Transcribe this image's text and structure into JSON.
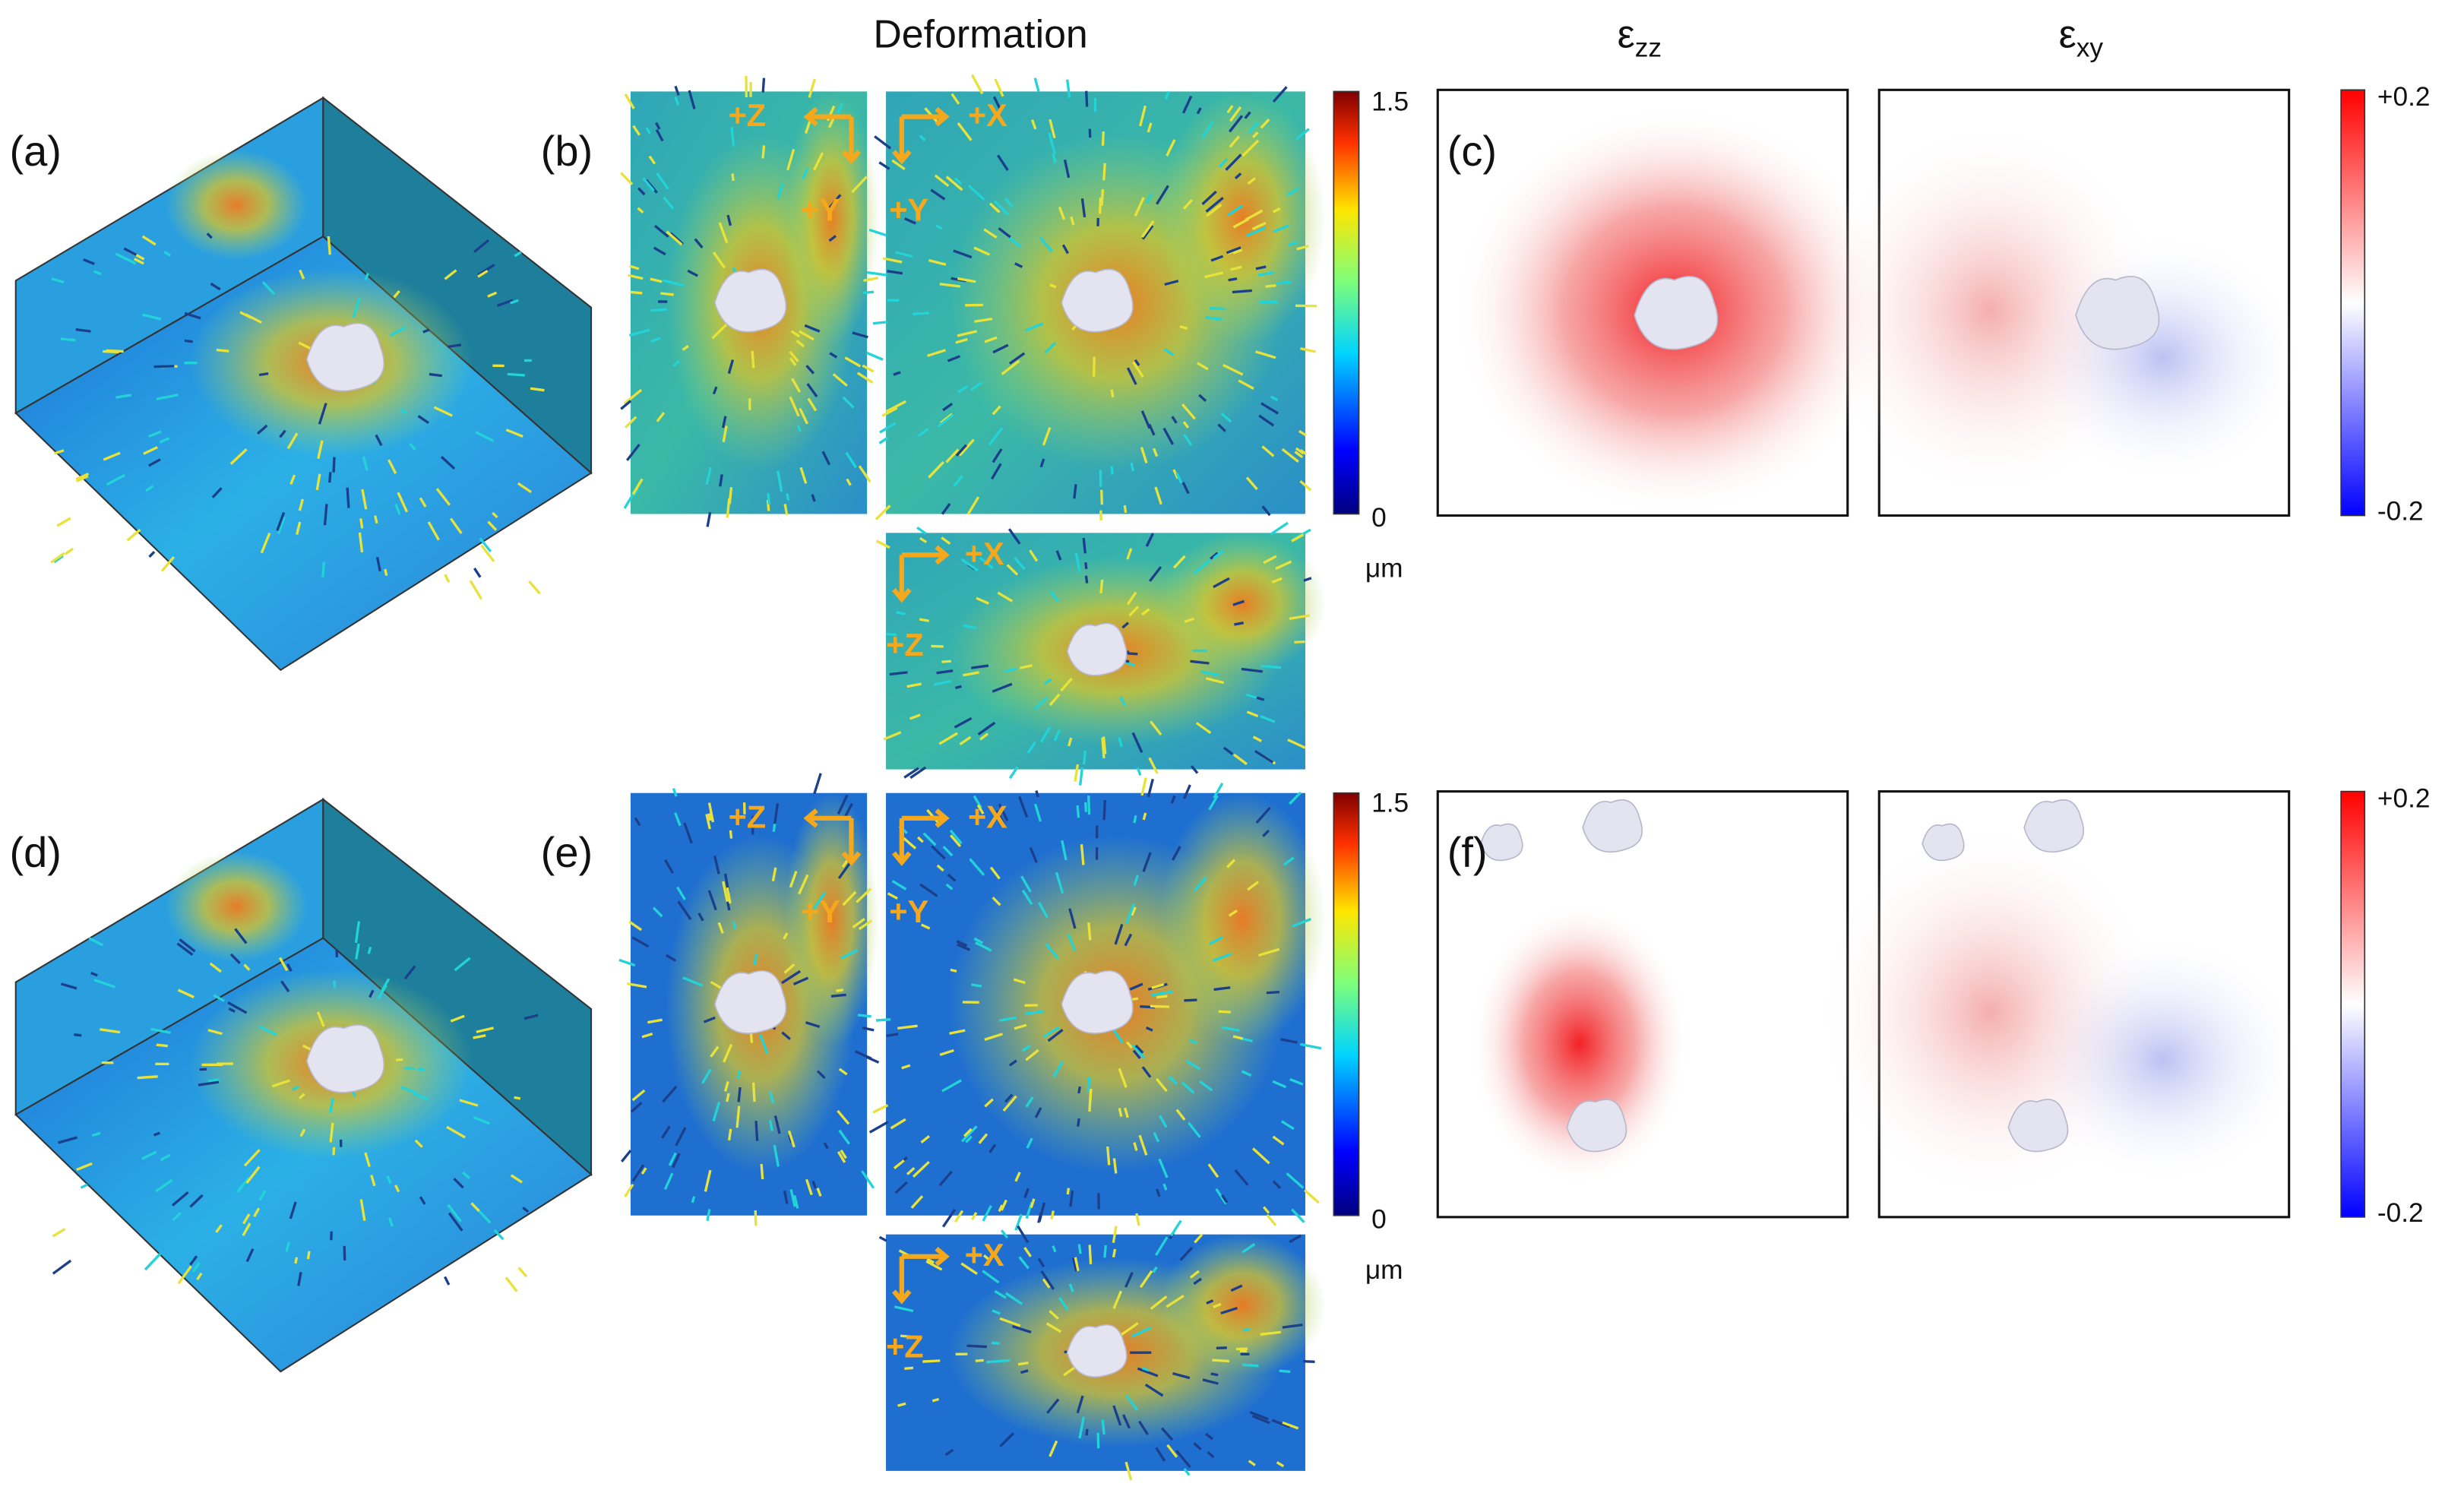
{
  "titles": {
    "deformation": "Deformation",
    "strain": [
      {
        "symbol": "ε",
        "subscript": "zz"
      },
      {
        "symbol": "ε",
        "subscript": "xy"
      }
    ]
  },
  "rows": [
    {
      "labels": [
        "(a)",
        "(b)",
        "(c)"
      ],
      "axes": {
        "side": [
          "+Z",
          "+Y"
        ],
        "top": [
          "+X",
          "+Y"
        ],
        "bottom": [
          "+X",
          "+Z"
        ]
      },
      "deformation_colorbar": {
        "max": "1.5",
        "min": "0",
        "unit": "μm"
      },
      "strain_colorbar": {
        "max": "+0.2",
        "min": "-0.2"
      }
    },
    {
      "labels": [
        "(d)",
        "(e)",
        "(f)"
      ],
      "axes": {
        "side": [
          "+Z",
          "+Y"
        ],
        "top": [
          "+X",
          "+Y"
        ],
        "bottom": [
          "+X",
          "+Z"
        ]
      },
      "deformation_colorbar": {
        "max": "1.5",
        "min": "0",
        "unit": "μm"
      },
      "strain_colorbar": {
        "max": "+0.2",
        "min": "-0.2"
      }
    }
  ]
}
